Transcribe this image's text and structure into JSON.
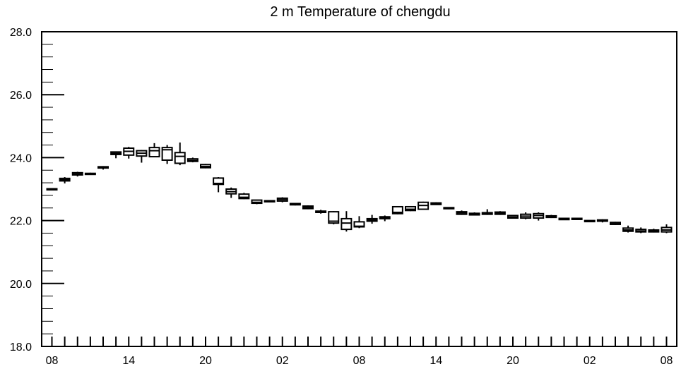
{
  "chart_data": {
    "type": "box",
    "title": "2 m Temperature of chengdu",
    "xlabel": "",
    "ylabel": "",
    "ylim": [
      18.0,
      28.0
    ],
    "y_major_ticks": [
      18.0,
      20.0,
      22.0,
      24.0,
      26.0,
      28.0
    ],
    "y_tick_labels": [
      "18.0",
      "20.0",
      "22.0",
      "24.0",
      "26.0",
      "28.0"
    ],
    "x_tick_labels": [
      "08",
      "14",
      "20",
      "02",
      "08",
      "14",
      "20",
      "02",
      "08"
    ],
    "x_tick_positions": [
      0,
      6,
      12,
      18,
      24,
      30,
      36,
      42,
      48
    ],
    "xlim": [
      -0.8,
      48.8
    ],
    "grid": false,
    "legend": "none",
    "colors": {
      "line": "#000000",
      "box_fill": "#ffffff"
    },
    "boxes": [
      {
        "x": 0,
        "min": 22.98,
        "q1": 22.99,
        "median": 23.0,
        "q3": 23.01,
        "max": 23.02
      },
      {
        "x": 1,
        "min": 23.18,
        "q1": 23.26,
        "median": 23.3,
        "q3": 23.34,
        "max": 23.38
      },
      {
        "x": 2,
        "min": 23.4,
        "q1": 23.45,
        "median": 23.48,
        "q3": 23.52,
        "max": 23.55
      },
      {
        "x": 3,
        "min": 23.46,
        "q1": 23.47,
        "median": 23.48,
        "q3": 23.5,
        "max": 23.52
      },
      {
        "x": 4,
        "min": 23.62,
        "q1": 23.67,
        "median": 23.69,
        "q3": 23.71,
        "max": 23.73
      },
      {
        "x": 5,
        "min": 23.98,
        "q1": 24.1,
        "median": 24.14,
        "q3": 24.18,
        "max": 24.2
      },
      {
        "x": 6,
        "min": 23.97,
        "q1": 24.08,
        "median": 24.2,
        "q3": 24.3,
        "max": 24.34
      },
      {
        "x": 7,
        "min": 23.84,
        "q1": 24.05,
        "median": 24.14,
        "q3": 24.22,
        "max": 24.24
      },
      {
        "x": 8,
        "min": 24.02,
        "q1": 24.03,
        "median": 24.22,
        "q3": 24.32,
        "max": 24.46
      },
      {
        "x": 9,
        "min": 23.8,
        "q1": 23.92,
        "median": 24.25,
        "q3": 24.32,
        "max": 24.4
      },
      {
        "x": 10,
        "min": 23.76,
        "q1": 23.82,
        "median": 24.04,
        "q3": 24.16,
        "max": 24.48
      },
      {
        "x": 11,
        "min": 23.85,
        "q1": 23.88,
        "median": 23.91,
        "q3": 23.96,
        "max": 24.0
      },
      {
        "x": 12,
        "min": 23.66,
        "q1": 23.68,
        "median": 23.72,
        "q3": 23.78,
        "max": 23.8
      },
      {
        "x": 13,
        "min": 22.9,
        "q1": 23.15,
        "median": 23.18,
        "q3": 23.35,
        "max": 23.38
      },
      {
        "x": 14,
        "min": 22.72,
        "q1": 22.85,
        "median": 22.92,
        "q3": 23.0,
        "max": 23.05
      },
      {
        "x": 15,
        "min": 22.68,
        "q1": 22.7,
        "median": 22.74,
        "q3": 22.84,
        "max": 22.88
      },
      {
        "x": 16,
        "min": 22.52,
        "q1": 22.55,
        "median": 22.58,
        "q3": 22.65,
        "max": 22.66
      },
      {
        "x": 17,
        "min": 22.6,
        "q1": 22.61,
        "median": 22.62,
        "q3": 22.63,
        "max": 22.64
      },
      {
        "x": 18,
        "min": 22.58,
        "q1": 22.62,
        "median": 22.67,
        "q3": 22.71,
        "max": 22.74
      },
      {
        "x": 19,
        "min": 22.48,
        "q1": 22.5,
        "median": 22.52,
        "q3": 22.54,
        "max": 22.55
      },
      {
        "x": 20,
        "min": 22.36,
        "q1": 22.38,
        "median": 22.42,
        "q3": 22.46,
        "max": 22.48
      },
      {
        "x": 21,
        "min": 22.22,
        "q1": 22.26,
        "median": 22.28,
        "q3": 22.3,
        "max": 22.34
      },
      {
        "x": 22,
        "min": 21.88,
        "q1": 21.92,
        "median": 21.98,
        "q3": 22.28,
        "max": 22.3
      },
      {
        "x": 23,
        "min": 21.65,
        "q1": 21.72,
        "median": 21.92,
        "q3": 22.06,
        "max": 22.3
      },
      {
        "x": 24,
        "min": 21.76,
        "q1": 21.8,
        "median": 21.82,
        "q3": 21.96,
        "max": 22.14
      },
      {
        "x": 25,
        "min": 21.9,
        "q1": 21.98,
        "median": 22.02,
        "q3": 22.06,
        "max": 22.18
      },
      {
        "x": 26,
        "min": 21.98,
        "q1": 22.06,
        "median": 22.1,
        "q3": 22.12,
        "max": 22.16
      },
      {
        "x": 27,
        "min": 22.2,
        "q1": 22.22,
        "median": 22.26,
        "q3": 22.44,
        "max": 22.46
      },
      {
        "x": 28,
        "min": 22.3,
        "q1": 22.32,
        "median": 22.36,
        "q3": 22.44,
        "max": 22.46
      },
      {
        "x": 29,
        "min": 22.34,
        "q1": 22.36,
        "median": 22.48,
        "q3": 22.58,
        "max": 22.6
      },
      {
        "x": 30,
        "min": 22.5,
        "q1": 22.51,
        "median": 22.53,
        "q3": 22.56,
        "max": 22.58
      },
      {
        "x": 31,
        "min": 22.36,
        "q1": 22.38,
        "median": 22.4,
        "q3": 22.41,
        "max": 22.42
      },
      {
        "x": 32,
        "min": 22.18,
        "q1": 22.2,
        "median": 22.24,
        "q3": 22.28,
        "max": 22.32
      },
      {
        "x": 33,
        "min": 22.16,
        "q1": 22.18,
        "median": 22.2,
        "q3": 22.23,
        "max": 22.26
      },
      {
        "x": 34,
        "min": 22.18,
        "q1": 22.2,
        "median": 22.22,
        "q3": 22.25,
        "max": 22.36
      },
      {
        "x": 35,
        "min": 22.18,
        "q1": 22.2,
        "median": 22.23,
        "q3": 22.27,
        "max": 22.3
      },
      {
        "x": 36,
        "min": 22.06,
        "q1": 22.08,
        "median": 22.11,
        "q3": 22.16,
        "max": 22.18
      },
      {
        "x": 37,
        "min": 22.04,
        "q1": 22.08,
        "median": 22.14,
        "q3": 22.2,
        "max": 22.26
      },
      {
        "x": 38,
        "min": 22.0,
        "q1": 22.08,
        "median": 22.16,
        "q3": 22.22,
        "max": 22.26
      },
      {
        "x": 39,
        "min": 22.08,
        "q1": 22.1,
        "median": 22.12,
        "q3": 22.15,
        "max": 22.18
      },
      {
        "x": 40,
        "min": 22.02,
        "q1": 22.03,
        "median": 22.05,
        "q3": 22.07,
        "max": 22.08
      },
      {
        "x": 41,
        "min": 22.03,
        "q1": 22.04,
        "median": 22.06,
        "q3": 22.07,
        "max": 22.08
      },
      {
        "x": 42,
        "min": 21.97,
        "q1": 21.98,
        "median": 21.99,
        "q3": 22.0,
        "max": 22.01
      },
      {
        "x": 43,
        "min": 21.94,
        "q1": 21.98,
        "median": 22.0,
        "q3": 22.02,
        "max": 22.04
      },
      {
        "x": 44,
        "min": 21.86,
        "q1": 21.88,
        "median": 21.9,
        "q3": 21.94,
        "max": 21.96
      },
      {
        "x": 45,
        "min": 21.62,
        "q1": 21.66,
        "median": 21.7,
        "q3": 21.76,
        "max": 21.84
      },
      {
        "x": 46,
        "min": 21.6,
        "q1": 21.64,
        "median": 21.67,
        "q3": 21.72,
        "max": 21.78
      },
      {
        "x": 47,
        "min": 21.62,
        "q1": 21.64,
        "median": 21.67,
        "q3": 21.7,
        "max": 21.74
      },
      {
        "x": 48,
        "min": 21.6,
        "q1": 21.64,
        "median": 21.7,
        "q3": 21.78,
        "max": 21.88
      }
    ]
  }
}
